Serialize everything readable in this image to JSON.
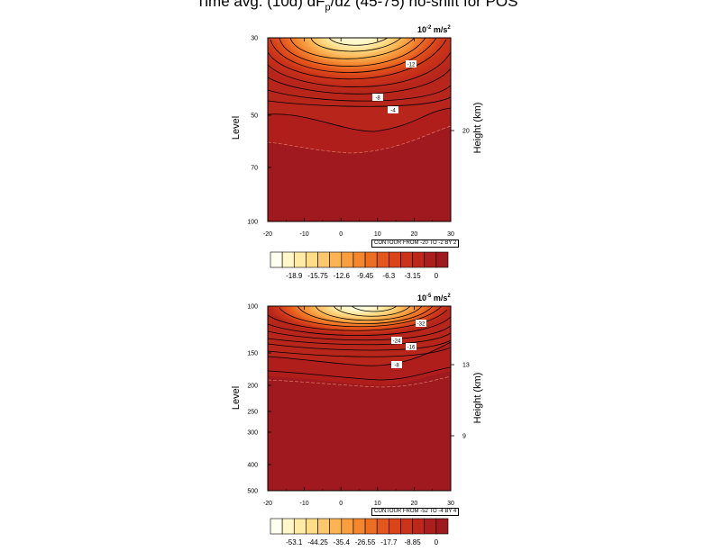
{
  "title_parts": {
    "pre": "Time avg. (10d) dF",
    "sub": "p",
    "post": "/dz (45-75) no-shift for POS"
  },
  "chart_data": [
    {
      "type": "contour",
      "units": {
        "base": "10",
        "exp": "-2",
        "tail": "m/s",
        "tail_exp": "2"
      },
      "xlabel": "",
      "ylabel": "Level",
      "y2label": "Height (km)",
      "x_ticks": [
        "-20",
        "-10",
        "0",
        "10",
        "20",
        "30"
      ],
      "xlim": [
        -20,
        30
      ],
      "y_ticks": [
        "30",
        "50",
        "70",
        "100"
      ],
      "y2_ticks": [
        "20"
      ],
      "contour_info": "CONTOUR FROM -20 TO -2 BY 2",
      "contour_labels": [
        "-12",
        "-8",
        "-4"
      ],
      "colorbar_labels": [
        "-18.9",
        "-15.75",
        "-12.6",
        "-9.45",
        "-6.3",
        "-3.15",
        "0"
      ],
      "colorbar_colors": [
        "#fffff0",
        "#fff7c8",
        "#ffeaa6",
        "#ffdd88",
        "#fdc86c",
        "#fbb452",
        "#f89e3e",
        "#f3862e",
        "#ec6e22",
        "#e4571c",
        "#da4418",
        "#cc3418",
        "#bc281a",
        "#aa1e1c",
        "#9e1a1e"
      ]
    },
    {
      "type": "contour",
      "units": {
        "base": "10",
        "exp": "-5",
        "tail": "m/s",
        "tail_exp": "2"
      },
      "xlabel": "",
      "ylabel": "Level",
      "y2label": "Height (km)",
      "x_ticks": [
        "-20",
        "-10",
        "0",
        "10",
        "20",
        "30"
      ],
      "xlim": [
        -20,
        30
      ],
      "y_ticks": [
        "100",
        "150",
        "200",
        "250",
        "300",
        "400",
        "500"
      ],
      "y2_ticks": [
        "13",
        "9"
      ],
      "contour_info": "CONTOUR FROM -52 TO -4 BY 4",
      "contour_labels": [
        "-32",
        "-24",
        "-16",
        "-8"
      ],
      "colorbar_labels": [
        "-53.1",
        "-44.25",
        "-35.4",
        "-26.55",
        "-17.7",
        "-8.85",
        "0"
      ],
      "colorbar_colors": [
        "#fffff0",
        "#fff7c8",
        "#ffeaa6",
        "#ffdd88",
        "#fdc86c",
        "#fbb452",
        "#f89e3e",
        "#f3862e",
        "#ec6e22",
        "#e4571c",
        "#da4418",
        "#cc3418",
        "#bc281a",
        "#aa1e1c",
        "#9e1a1e"
      ]
    }
  ]
}
